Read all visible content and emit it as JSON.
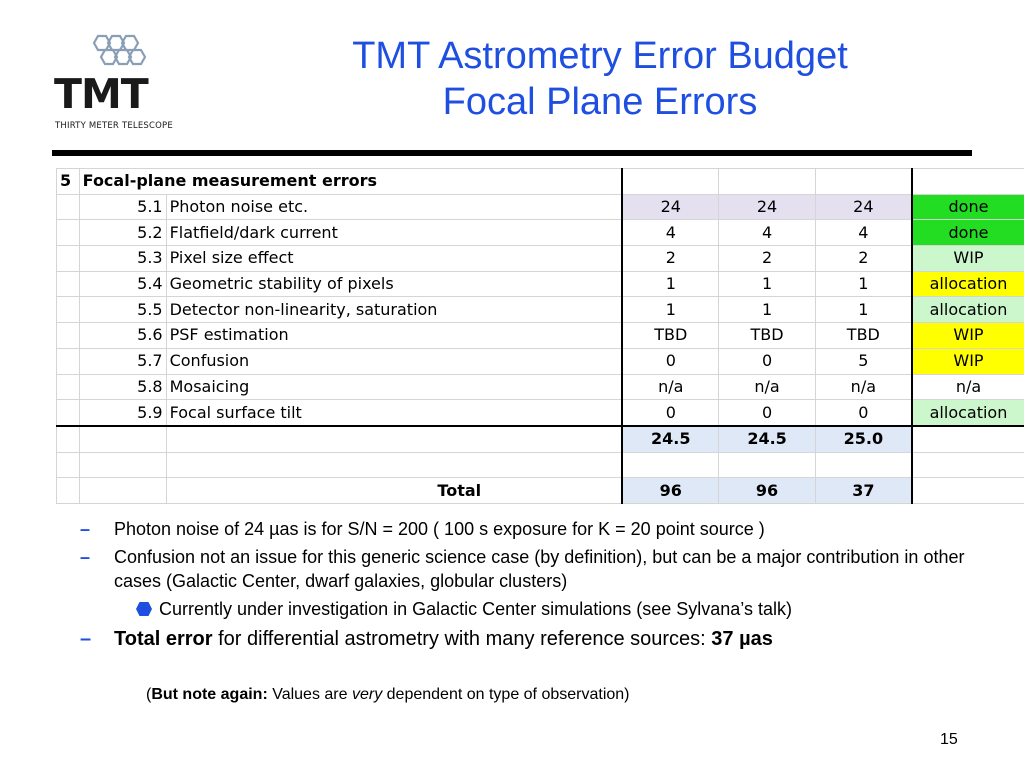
{
  "logo": {
    "text": "TMT",
    "subtitle": "THIRTY METER TELESCOPE"
  },
  "title": {
    "line1": "TMT Astrometry Error Budget",
    "line2": "Focal Plane Errors"
  },
  "table": {
    "header": {
      "section": "5",
      "label": "Focal-plane measurement errors"
    },
    "rows": [
      {
        "num": "5.1",
        "name": "Photon noise etc.",
        "v1": "24",
        "v2": "24",
        "v3": "24",
        "status": "done",
        "row_color": "#e4e0f0",
        "status_color": "#22dd22"
      },
      {
        "num": "5.2",
        "name": "Flatfield/dark current",
        "v1": "4",
        "v2": "4",
        "v3": "4",
        "status": "done",
        "row_color": "#ffffff",
        "status_color": "#22dd22"
      },
      {
        "num": "5.3",
        "name": "Pixel size effect",
        "v1": "2",
        "v2": "2",
        "v3": "2",
        "status": "WIP",
        "row_color": "#ffffff",
        "status_color": "#ccf6cc"
      },
      {
        "num": "5.4",
        "name": "Geometric stability of pixels",
        "v1": "1",
        "v2": "1",
        "v3": "1",
        "status": "allocation",
        "row_color": "#ffffff",
        "status_color": "#ffff00"
      },
      {
        "num": "5.5",
        "name": "Detector non-linearity, saturation",
        "v1": "1",
        "v2": "1",
        "v3": "1",
        "status": "allocation",
        "row_color": "#ffffff",
        "status_color": "#ccf6cc"
      },
      {
        "num": "5.6",
        "name": "PSF estimation",
        "v1": "TBD",
        "v2": "TBD",
        "v3": "TBD",
        "status": "WIP",
        "row_color": "#ffffff",
        "status_color": "#ffff00"
      },
      {
        "num": "5.7",
        "name": "Confusion",
        "v1": "0",
        "v2": "0",
        "v3": "5",
        "status": "WIP",
        "row_color": "#ffffff",
        "status_color": "#ffff00"
      },
      {
        "num": "5.8",
        "name": "Mosaicing",
        "v1": "n/a",
        "v2": "n/a",
        "v3": "n/a",
        "status": "n/a",
        "row_color": "#ffffff",
        "status_color": "#ffffff"
      },
      {
        "num": "5.9",
        "name": "Focal surface tilt",
        "v1": "0",
        "v2": "0",
        "v3": "0",
        "status": "allocation",
        "row_color": "#ffffff",
        "status_color": "#ccf6cc"
      }
    ],
    "subtotal": {
      "v1": "24.5",
      "v2": "24.5",
      "v3": "25.0"
    },
    "total": {
      "label": "Total",
      "v1": "96",
      "v2": "96",
      "v3": "37"
    },
    "total_fill": "#dfe8f6"
  },
  "bullets": {
    "b1": "Photon noise of 24 µas is for S/N = 200    ( 100 s exposure for K = 20 point source )",
    "b2": "Confusion not an issue for this generic science case (by definition), but can be a major contribution in other cases (Galactic Center, dwarf galaxies, globular clusters)",
    "b2_sub": "Currently under investigation in Galactic Center simulations (see Sylvana’s talk)",
    "b3_bold": "Total error",
    "b3_rest": " for differential astrometry with many reference sources: ",
    "b3_value": "37 µas",
    "dash": "–"
  },
  "note": {
    "open": "(",
    "bold": "But note again:",
    "text1": " Values are ",
    "italic": "very",
    "text2": " dependent on type of observation)"
  },
  "page_number": "15",
  "colors": {
    "title": "#1f4fe0",
    "bullet": "#1f4fe0"
  }
}
